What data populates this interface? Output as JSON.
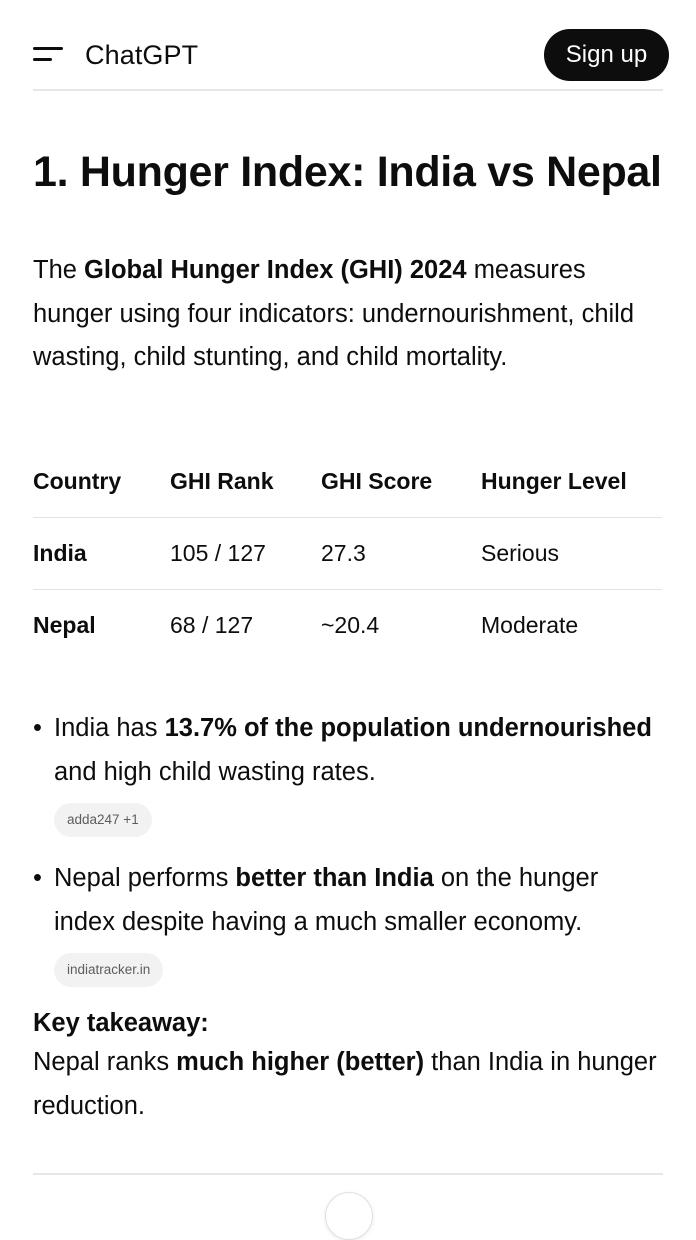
{
  "header": {
    "app_title": "ChatGPT",
    "signup_label": "Sign up",
    "menu_icon": "hamburger-menu-icon"
  },
  "content": {
    "heading": "1. Hunger Index: India vs Nepal",
    "intro": {
      "text_before": "The ",
      "bold": "Global Hunger Index (GHI) 2024",
      "text_after": " measures hunger using four indicators: undernourishment, child wasting, child stunting, and child mortality."
    },
    "table": {
      "headers": [
        "Country",
        "GHI Rank",
        "GHI Score",
        "Hunger Level"
      ],
      "rows": [
        [
          "India",
          "105 / 127",
          "27.3",
          "Serious"
        ],
        [
          "Nepal",
          "68 / 127",
          "~20.4",
          "Moderate"
        ]
      ]
    },
    "bullets": [
      {
        "text_before": "India has ",
        "bold": "13.7% of the population undernourished",
        "text_after": " and high child wasting rates.",
        "source": "adda247 +1"
      },
      {
        "text_before": "Nepal performs ",
        "bold": "better than India",
        "text_after": " on the hunger index despite having a much smaller economy.",
        "source": "indiatracker.in"
      }
    ],
    "takeaway": {
      "label": "Key takeaway:",
      "text_before": "Nepal ranks ",
      "bold": "much higher (better)",
      "text_after": " than India in hunger reduction."
    }
  }
}
